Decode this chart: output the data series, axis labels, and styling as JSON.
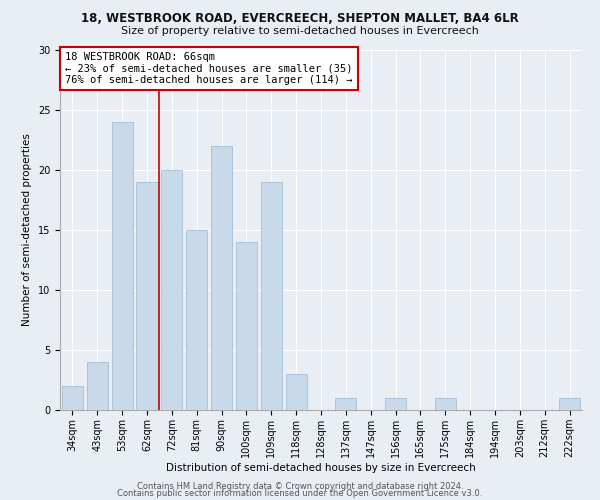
{
  "title1": "18, WESTBROOK ROAD, EVERCREECH, SHEPTON MALLET, BA4 6LR",
  "title2": "Size of property relative to semi-detached houses in Evercreech",
  "xlabel": "Distribution of semi-detached houses by size in Evercreech",
  "ylabel": "Number of semi-detached properties",
  "categories": [
    "34sqm",
    "43sqm",
    "53sqm",
    "62sqm",
    "72sqm",
    "81sqm",
    "90sqm",
    "100sqm",
    "109sqm",
    "118sqm",
    "128sqm",
    "137sqm",
    "147sqm",
    "156sqm",
    "165sqm",
    "175sqm",
    "184sqm",
    "194sqm",
    "203sqm",
    "212sqm",
    "222sqm"
  ],
  "values": [
    2,
    4,
    24,
    19,
    20,
    15,
    22,
    14,
    19,
    3,
    0,
    1,
    0,
    1,
    0,
    1,
    0,
    0,
    0,
    0,
    1
  ],
  "bar_color": "#c8d9ea",
  "bar_edge_color": "#a8bfd4",
  "bar_width": 0.85,
  "ylim": [
    0,
    30
  ],
  "yticks": [
    0,
    5,
    10,
    15,
    20,
    25,
    30
  ],
  "annotation_title": "18 WESTBROOK ROAD: 66sqm",
  "annotation_line1": "← 23% of semi-detached houses are smaller (35)",
  "annotation_line2": "76% of semi-detached houses are larger (114) →",
  "red_line_x": 3.5,
  "annotation_box_color": "#ffffff",
  "annotation_box_edge": "#cc0000",
  "footer1": "Contains HM Land Registry data © Crown copyright and database right 2024.",
  "footer2": "Contains public sector information licensed under the Open Government Licence v3.0.",
  "background_color": "#e8eef4",
  "grid_color": "#ffffff",
  "title1_fontsize": 8.5,
  "title2_fontsize": 8.0,
  "axis_fontsize": 7.5,
  "tick_fontsize": 7.0,
  "annotation_fontsize": 7.5,
  "footer_fontsize": 6.0
}
